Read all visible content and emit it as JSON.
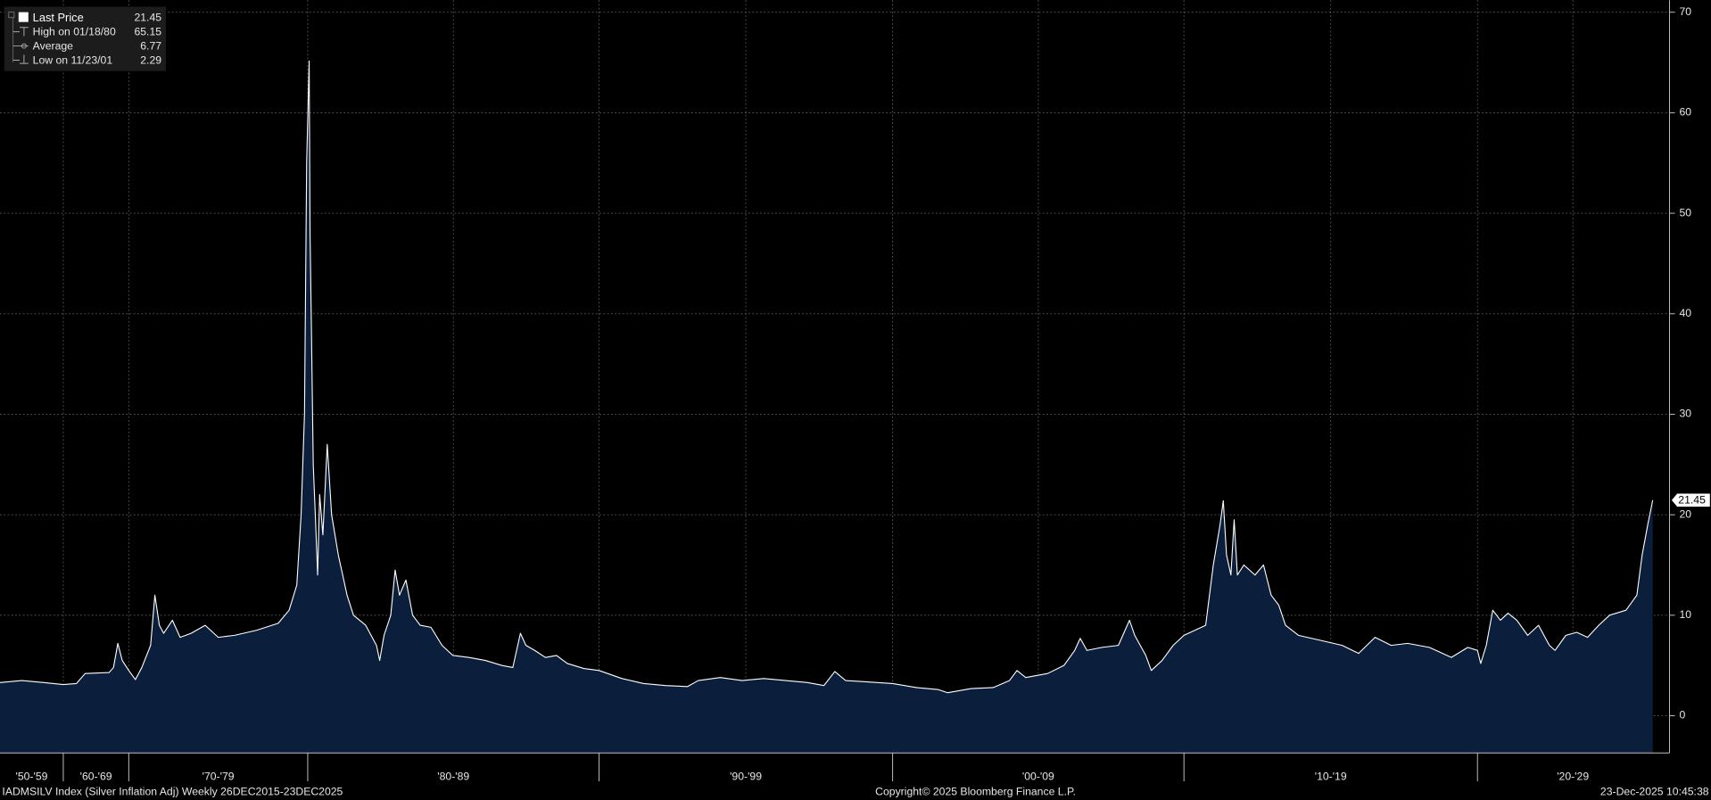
{
  "chart_data": {
    "type": "area",
    "series": [
      {
        "color": "#ffffff",
        "fill": "#0b1f3d",
        "x": [
          1950.0,
          1953.45,
          1956.9,
          1960.0,
          1962.0,
          1963.33,
          1967.0,
          1967.67,
          1968.33,
          1969.0,
          1970.0,
          1970.37,
          1970.73,
          1971.22,
          1971.46,
          1971.71,
          1971.95,
          1972.44,
          1972.87,
          1973.48,
          1974.27,
          1975.0,
          1975.91,
          1977.13,
          1978.35,
          1978.96,
          1979.39,
          1979.63,
          1979.82,
          1979.94,
          1980.05,
          1980.08,
          1980.12,
          1980.19,
          1980.26,
          1980.34,
          1980.41,
          1980.52,
          1980.67,
          1980.82,
          1981.05,
          1981.35,
          1981.57,
          1981.99,
          1982.36,
          1982.47,
          1982.62,
          1982.85,
          1983.0,
          1983.15,
          1983.37,
          1983.6,
          1983.86,
          1984.23,
          1984.61,
          1984.98,
          1985.54,
          1986.1,
          1986.67,
          1987.04,
          1987.3,
          1987.49,
          1987.79,
          1988.16,
          1988.54,
          1988.91,
          1989.48,
          1990.0,
          1990.78,
          1991.52,
          1992.27,
          1993.01,
          1993.38,
          1994.13,
          1994.87,
          1995.61,
          1996.36,
          1997.1,
          1997.66,
          1998.03,
          1998.4,
          1998.96,
          2000.0,
          2000.82,
          2001.57,
          2001.89,
          2002.7,
          2003.45,
          2004.01,
          2004.27,
          2004.57,
          2005.32,
          2005.88,
          2006.25,
          2006.44,
          2006.67,
          2007.19,
          2007.75,
          2008.13,
          2008.31,
          2008.69,
          2008.88,
          2009.25,
          2009.63,
          2010.0,
          2010.37,
          2010.74,
          2011.0,
          2011.23,
          2011.34,
          2011.45,
          2011.6,
          2011.71,
          2011.82,
          2012.04,
          2012.42,
          2012.71,
          2012.97,
          2013.23,
          2013.46,
          2013.9,
          2014.65,
          2015.39,
          2015.95,
          2016.51,
          2017.06,
          2017.62,
          2018.36,
          2019.11,
          2019.67,
          2020.0,
          2020.11,
          2020.3,
          2020.52,
          2020.78,
          2021.04,
          2021.34,
          2021.71,
          2022.08,
          2022.45,
          2022.64,
          2023.01,
          2023.38,
          2023.75,
          2024.13,
          2024.5,
          2025.06,
          2025.43,
          2025.61,
          2025.8,
          2025.97
        ],
        "values": [
          3.3,
          3.5,
          3.3,
          3.1,
          3.2,
          4.2,
          4.3,
          4.8,
          7.2,
          5.5,
          4.5,
          3.6,
          4.8,
          7.0,
          12.0,
          9.0,
          8.2,
          9.5,
          7.8,
          8.2,
          9.0,
          7.8,
          8.0,
          8.5,
          9.2,
          10.5,
          13,
          20,
          30,
          55,
          65.15,
          48,
          40,
          25,
          20,
          14,
          22,
          18,
          27,
          20,
          16,
          12,
          10,
          9,
          7,
          5.5,
          8,
          10,
          14.5,
          12,
          13.5,
          10,
          9,
          8.8,
          7,
          6,
          5.8,
          5.5,
          5,
          4.8,
          8.2,
          7,
          6.5,
          5.8,
          6,
          5.2,
          4.7,
          4.5,
          3.7,
          3.2,
          3.0,
          2.9,
          3.5,
          3.8,
          3.5,
          3.7,
          3.5,
          3.3,
          3.0,
          4.4,
          3.5,
          3.4,
          3.2,
          2.8,
          2.6,
          2.29,
          2.7,
          2.8,
          3.5,
          4.5,
          3.8,
          4.2,
          5.0,
          6.5,
          7.7,
          6.5,
          6.8,
          7.0,
          9.5,
          8.0,
          6.0,
          4.5,
          5.5,
          7.0,
          8.0,
          8.5,
          9.0,
          15,
          19,
          21.4,
          16,
          14,
          19.5,
          14,
          15,
          14,
          15,
          12,
          11,
          9,
          8,
          7.5,
          7,
          6.2,
          7.8,
          7,
          7.2,
          6.8,
          5.8,
          6.8,
          6.5,
          5.2,
          7.0,
          10.5,
          9.5,
          10.2,
          9.5,
          8.0,
          9,
          7.0,
          6.5,
          8.0,
          8.3,
          7.8,
          9,
          10,
          10.5,
          12,
          16,
          19,
          21.45
        ]
      }
    ],
    "xlim": [
      1950,
      2026.5
    ],
    "ylim": [
      -3.7,
      71.2
    ],
    "yticks": [
      0,
      10,
      20,
      30,
      40,
      50,
      60,
      70
    ],
    "xticks": [
      {
        "value": 1950,
        "label": "'50-'59"
      },
      {
        "value": 1960,
        "label": "'60-'69"
      },
      {
        "value": 1970,
        "label": "'70-'79"
      },
      {
        "value": 1980,
        "label": "'80-'89"
      },
      {
        "value": 1990,
        "label": "'90-'99"
      },
      {
        "value": 2000,
        "label": "'00-'09"
      },
      {
        "value": 2010,
        "label": "'10-'19"
      },
      {
        "value": 2020,
        "label": "'20-'29"
      }
    ],
    "grid": true,
    "legend": {
      "position": "top-left",
      "items": [
        {
          "label": "Last Price",
          "value": 21.45
        },
        {
          "label": "High on 01/18/80",
          "value": 65.15
        },
        {
          "label": "Average",
          "value": 6.77
        },
        {
          "label": "Low on 11/23/01",
          "value": 2.29
        }
      ]
    },
    "footer": {
      "left": "IADMSILV Index (Silver Inflation Adj) Weekly 26DEC2015-23DEC2025",
      "center": "Copyright© 2025 Bloomberg Finance L.P.",
      "right": "23-Dec-2025 10:45:38"
    }
  }
}
